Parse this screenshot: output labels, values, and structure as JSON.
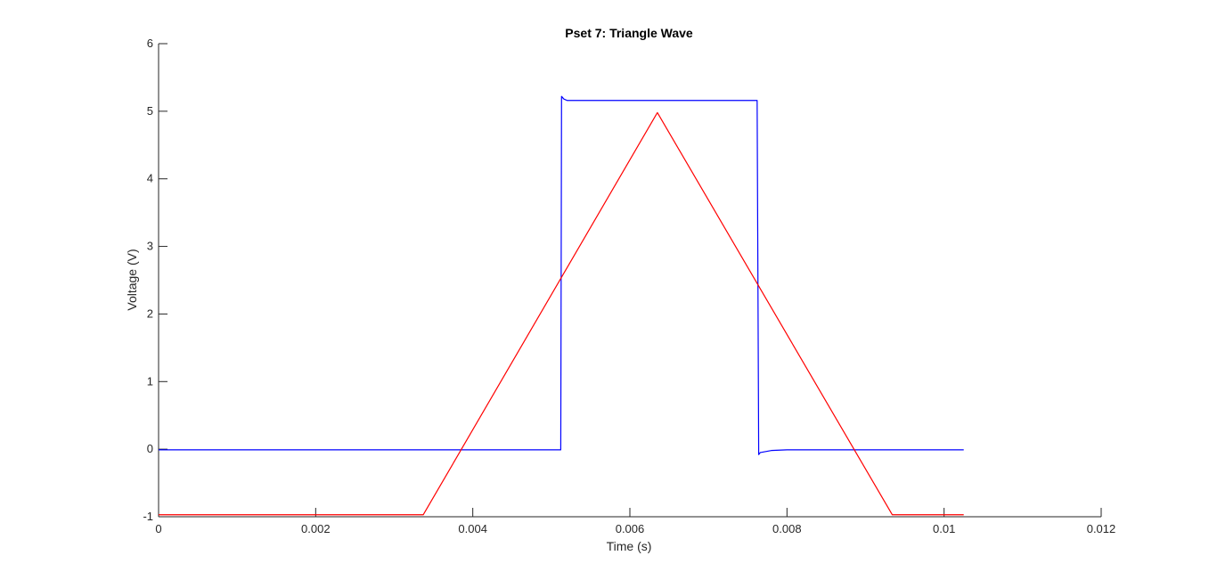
{
  "chart_data": {
    "type": "line",
    "title": "Pset 7: Triangle Wave",
    "xlabel": "Time (s)",
    "ylabel": "Voltage (V)",
    "xlim": [
      0,
      0.012
    ],
    "ylim": [
      -1,
      6
    ],
    "xticks": [
      0,
      0.002,
      0.004,
      0.006,
      0.008,
      0.01,
      0.012
    ],
    "xtick_labels": [
      "0",
      "0.002",
      "0.004",
      "0.006",
      "0.008",
      "0.01",
      "0.012"
    ],
    "yticks": [
      -1,
      0,
      1,
      2,
      3,
      4,
      5,
      6
    ],
    "ytick_labels": [
      "-1",
      "0",
      "1",
      "2",
      "3",
      "4",
      "5",
      "6"
    ],
    "grid": false,
    "legend": false,
    "series": [
      {
        "color": "#0000ff",
        "x": [
          0,
          0.00512,
          0.00513,
          0.00516,
          0.0052,
          0.006,
          0.007,
          0.00762,
          0.00764,
          0.00766,
          0.0078,
          0.008,
          0.009,
          0.01025
        ],
        "y": [
          -0.01,
          -0.01,
          5.22,
          5.18,
          5.16,
          5.16,
          5.16,
          5.16,
          -0.08,
          -0.05,
          -0.02,
          -0.01,
          -0.01,
          -0.01
        ]
      },
      {
        "color": "#ff0000",
        "x": [
          0,
          0.00337,
          0.00635,
          0.00934,
          0.01025
        ],
        "y": [
          -0.97,
          -0.97,
          4.98,
          -0.97,
          -0.97
        ]
      }
    ]
  }
}
